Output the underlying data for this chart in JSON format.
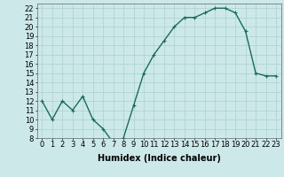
{
  "x": [
    0,
    1,
    2,
    3,
    4,
    5,
    6,
    7,
    8,
    9,
    10,
    11,
    12,
    13,
    14,
    15,
    16,
    17,
    18,
    19,
    20,
    21,
    22,
    23
  ],
  "y": [
    12,
    10,
    12,
    11,
    12.5,
    10,
    9,
    7.5,
    8,
    11.5,
    15,
    17,
    18.5,
    20,
    21,
    21,
    21.5,
    22,
    22,
    21.5,
    19.5,
    15,
    14.7,
    14.7
  ],
  "line_color": "#1a6b5a",
  "marker": "+",
  "marker_size": 3,
  "bg_color": "#cce8e8",
  "grid_color": "#aad0d0",
  "xlabel": "Humidex (Indice chaleur)",
  "ylim": [
    8,
    22.5
  ],
  "xlim": [
    -0.5,
    23.5
  ],
  "yticks": [
    8,
    9,
    10,
    11,
    12,
    13,
    14,
    15,
    16,
    17,
    18,
    19,
    20,
    21,
    22
  ],
  "xticks": [
    0,
    1,
    2,
    3,
    4,
    5,
    6,
    7,
    8,
    9,
    10,
    11,
    12,
    13,
    14,
    15,
    16,
    17,
    18,
    19,
    20,
    21,
    22,
    23
  ],
  "xtick_labels": [
    "0",
    "1",
    "2",
    "3",
    "4",
    "5",
    "6",
    "7",
    "8",
    "9",
    "10",
    "11",
    "12",
    "13",
    "14",
    "15",
    "16",
    "17",
    "18",
    "19",
    "20",
    "21",
    "22",
    "23"
  ],
  "ytick_labels": [
    "8",
    "9",
    "10",
    "11",
    "12",
    "13",
    "14",
    "15",
    "16",
    "17",
    "18",
    "19",
    "20",
    "21",
    "22"
  ],
  "xlabel_fontsize": 7,
  "tick_fontsize": 6,
  "linewidth": 1.0
}
